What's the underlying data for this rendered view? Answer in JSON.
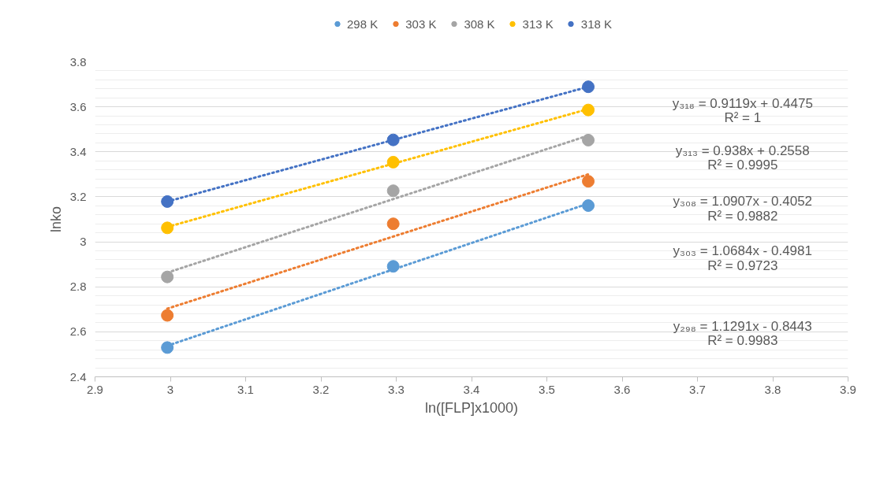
{
  "chart_data": {
    "type": "scatter",
    "xlabel": "ln([FLP]x1000)",
    "ylabel": "lnko",
    "xlim": [
      2.9,
      3.9
    ],
    "xticks": [
      2.9,
      3,
      3.1,
      3.2,
      3.3,
      3.4,
      3.5,
      3.6,
      3.7,
      3.8,
      3.9
    ],
    "ylim": [
      2.4,
      3.8
    ],
    "yticks": [
      2.4,
      2.6,
      2.8,
      3,
      3.2,
      3.4,
      3.6,
      3.8
    ],
    "grid": "y",
    "legend": "top",
    "marker": "circle",
    "series": [
      {
        "name": "298 K",
        "color": "#5b9bd5",
        "x": [
          2.996,
          3.296,
          3.555
        ],
        "values": [
          2.53,
          2.891,
          3.161
        ]
      },
      {
        "name": "303 K",
        "color": "#ed7d31",
        "x": [
          2.996,
          3.296,
          3.555
        ],
        "values": [
          2.673,
          3.08,
          3.269
        ]
      },
      {
        "name": "308 K",
        "color": "#a5a5a5",
        "x": [
          2.996,
          3.296,
          3.555
        ],
        "values": [
          2.844,
          3.227,
          3.452
        ]
      },
      {
        "name": "313 K",
        "color": "#ffc000",
        "x": [
          2.996,
          3.296,
          3.555
        ],
        "values": [
          3.062,
          3.354,
          3.586
        ]
      },
      {
        "name": "318 K",
        "color": "#4472c4",
        "x": [
          2.996,
          3.296,
          3.555
        ],
        "values": [
          3.179,
          3.453,
          3.689
        ]
      },
      {
        "type": "line",
        "line_style": "dotted",
        "marker": "none",
        "color": "#5b9bd5",
        "x": [
          2.996,
          3.555
        ],
        "values": [
          2.538,
          3.17
        ]
      },
      {
        "type": "line",
        "line_style": "dotted",
        "marker": "none",
        "color": "#ed7d31",
        "x": [
          2.996,
          3.555
        ],
        "values": [
          2.703,
          3.3
        ]
      },
      {
        "type": "line",
        "line_style": "dotted",
        "marker": "none",
        "color": "#a5a5a5",
        "x": [
          2.996,
          3.555
        ],
        "values": [
          2.863,
          3.472
        ]
      },
      {
        "type": "line",
        "line_style": "dotted",
        "marker": "none",
        "color": "#ffc000",
        "x": [
          2.996,
          3.555
        ],
        "values": [
          3.066,
          3.59
        ]
      },
      {
        "type": "line",
        "line_style": "dotted",
        "marker": "none",
        "color": "#4472c4",
        "x": [
          2.996,
          3.555
        ],
        "values": [
          3.179,
          3.689
        ]
      }
    ],
    "annotations": [
      "y₃₁₈ = 0.9119x + 0.4475",
      "R² = 1",
      "y₃₁₃ = 0.938x + 0.2558",
      "R² = 0.9995",
      "y₃₀₈ = 1.0907x - 0.4052",
      "R² = 0.9882",
      "y₃₀₃ = 1.0684x - 0.4981",
      "R² = 0.9723",
      "y₂₉₈ = 1.1291x - 0.8443",
      "R² = 0.9983"
    ]
  }
}
